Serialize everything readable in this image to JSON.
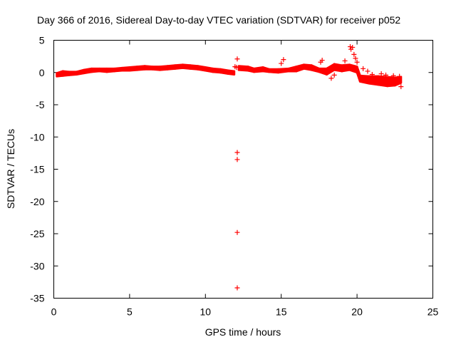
{
  "chart_data": {
    "type": "scatter",
    "title": "Day 366 of 2016, Sidereal Day-to-day VTEC variation (SDTVAR) for receiver p052",
    "xlabel": "GPS time / hours",
    "ylabel": "SDTVAR / TECUs",
    "xlim": [
      0,
      25
    ],
    "ylim": [
      -35,
      5
    ],
    "xticks": [
      0,
      5,
      10,
      15,
      20,
      25
    ],
    "yticks": [
      5,
      0,
      -5,
      -10,
      -15,
      -20,
      -25,
      -30,
      -35
    ],
    "grid": false,
    "legend": "none",
    "marker": "plus",
    "series": [
      {
        "name": "SDTVAR",
        "color": "#ff0000",
        "band": [
          [
            0.2,
            -0.6,
            -0.1
          ],
          [
            0.6,
            -0.5,
            0.2
          ],
          [
            1.0,
            -0.4,
            0.1
          ],
          [
            1.5,
            -0.3,
            0.1
          ],
          [
            2.0,
            -0.1,
            0.4
          ],
          [
            2.5,
            0.1,
            0.6
          ],
          [
            3.0,
            0.2,
            0.6
          ],
          [
            3.5,
            0.1,
            0.6
          ],
          [
            4.0,
            0.2,
            0.6
          ],
          [
            4.5,
            0.3,
            0.7
          ],
          [
            5.0,
            0.3,
            0.8
          ],
          [
            5.5,
            0.4,
            0.9
          ],
          [
            6.0,
            0.5,
            1.0
          ],
          [
            6.5,
            0.5,
            0.9
          ],
          [
            7.0,
            0.4,
            0.9
          ],
          [
            7.5,
            0.5,
            1.0
          ],
          [
            8.0,
            0.6,
            1.1
          ],
          [
            8.5,
            0.7,
            1.2
          ],
          [
            9.0,
            0.6,
            1.1
          ],
          [
            9.5,
            0.5,
            1.0
          ],
          [
            10.0,
            0.3,
            0.8
          ],
          [
            10.5,
            0.1,
            0.6
          ],
          [
            11.0,
            0.0,
            0.5
          ],
          [
            11.5,
            -0.2,
            0.3
          ],
          [
            11.9,
            -0.3,
            0.2
          ],
          [
            12.2,
            0.4,
            1.0
          ],
          [
            12.8,
            0.3,
            0.9
          ],
          [
            13.2,
            0.1,
            0.6
          ],
          [
            13.8,
            0.2,
            0.8
          ],
          [
            14.2,
            0.1,
            0.5
          ],
          [
            14.8,
            0.0,
            0.5
          ],
          [
            15.5,
            0.2,
            0.6
          ],
          [
            16.0,
            0.2,
            0.9
          ],
          [
            16.5,
            0.6,
            1.2
          ],
          [
            17.0,
            0.4,
            1.1
          ],
          [
            17.5,
            0.1,
            0.6
          ],
          [
            18.0,
            -0.3,
            0.6
          ],
          [
            18.5,
            0.4,
            1.3
          ],
          [
            19.0,
            0.2,
            1.1
          ],
          [
            19.5,
            0.4,
            1.2
          ],
          [
            20.0,
            0.0,
            0.9
          ],
          [
            20.2,
            -1.4,
            -0.5
          ],
          [
            20.8,
            -1.7,
            -0.6
          ],
          [
            21.4,
            -1.9,
            -0.6
          ],
          [
            22.0,
            -2.1,
            -0.7
          ],
          [
            22.5,
            -2.0,
            -0.8
          ],
          [
            22.9,
            -1.6,
            -0.7
          ]
        ],
        "points": [
          [
            12.1,
            2.1
          ],
          [
            12.1,
            -12.4
          ],
          [
            12.1,
            -13.5
          ],
          [
            12.1,
            -24.8
          ],
          [
            12.1,
            -33.4
          ],
          [
            11.95,
            0.9
          ],
          [
            12.05,
            0.8
          ],
          [
            15.0,
            1.4
          ],
          [
            15.15,
            2.0
          ],
          [
            17.6,
            1.6
          ],
          [
            17.7,
            1.9
          ],
          [
            18.3,
            -0.9
          ],
          [
            18.5,
            -0.4
          ],
          [
            19.2,
            1.8
          ],
          [
            19.55,
            4.0
          ],
          [
            19.6,
            3.6
          ],
          [
            19.7,
            3.9
          ],
          [
            19.8,
            2.8
          ],
          [
            19.9,
            2.2
          ],
          [
            20.0,
            1.6
          ],
          [
            20.4,
            0.6
          ],
          [
            20.7,
            0.2
          ],
          [
            21.0,
            -0.3
          ],
          [
            21.6,
            -0.2
          ],
          [
            21.9,
            -0.4
          ],
          [
            22.4,
            -0.5
          ],
          [
            22.8,
            -0.6
          ],
          [
            22.9,
            -2.2
          ]
        ]
      }
    ]
  }
}
